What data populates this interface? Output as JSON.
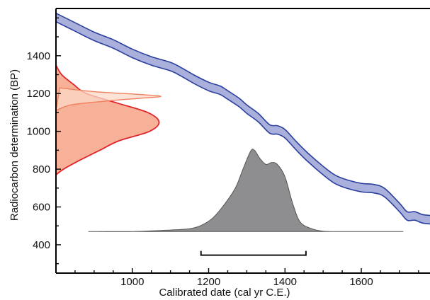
{
  "chart_data": {
    "type": "area",
    "title": "",
    "xlabel": "Calibrated date (cal yr C.E.)",
    "ylabel": "Radiocarbon determination (BP)",
    "xlim": [
      800,
      1780
    ],
    "ylim": [
      250,
      1650
    ],
    "xticks": [
      1000,
      1200,
      1400,
      1600
    ],
    "yticks": [
      400,
      600,
      800,
      1000,
      1200,
      1400
    ],
    "xtick_labels": [
      "1000",
      "1200",
      "1400",
      "1600"
    ],
    "ytick_labels": [
      "400",
      "600",
      "800",
      "1000",
      "1200",
      "1400"
    ],
    "grid": false,
    "legend": false,
    "colors": {
      "calibration_fill": "#aab0dc",
      "calibration_stroke": "#2b3f9e",
      "radiocarbon_fill": "#f6a98e",
      "radiocarbon_stroke": "#e0262b",
      "narrow_fill": "#fbd9c8",
      "narrow_stroke": "#f08060",
      "calibrated_fill": "#8e8e90",
      "calibrated_stroke": "#555555",
      "range_bar": "#111111"
    },
    "series": [
      {
        "type": "band",
        "x": [
          800,
          850,
          900,
          950,
          1000,
          1050,
          1100,
          1130,
          1160,
          1200,
          1230,
          1250,
          1280,
          1300,
          1330,
          1360,
          1380,
          1400,
          1430,
          1460,
          1500,
          1530,
          1560,
          1600,
          1630,
          1660,
          1700,
          1720,
          1740,
          1760,
          1780
        ],
        "y_low": [
          1580,
          1530,
          1480,
          1440,
          1390,
          1350,
          1320,
          1290,
          1255,
          1215,
          1195,
          1170,
          1130,
          1095,
          1050,
          990,
          985,
          965,
          900,
          840,
          770,
          725,
          700,
          680,
          675,
          655,
          575,
          530,
          530,
          515,
          510
        ],
        "y_high": [
          1625,
          1575,
          1525,
          1485,
          1435,
          1395,
          1365,
          1335,
          1300,
          1260,
          1240,
          1215,
          1175,
          1140,
          1095,
          1035,
          1030,
          1010,
          945,
          885,
          815,
          770,
          745,
          725,
          720,
          700,
          620,
          575,
          575,
          560,
          555
        ]
      },
      {
        "type": "density",
        "y": [
          770,
          800,
          850,
          900,
          950,
          1000,
          1050,
          1100,
          1150,
          1200,
          1250,
          1300,
          1350
        ],
        "x": [
          800,
          820,
          865,
          915,
          965,
          1045,
          1070,
          1040,
          960,
          880,
          845,
          815,
          800
        ]
      },
      {
        "type": "density",
        "y": [
          1110,
          1140,
          1160,
          1175,
          1185,
          1195,
          1210,
          1230
        ],
        "x": [
          800,
          840,
          930,
          1020,
          1075,
          1020,
          900,
          810
        ]
      },
      {
        "type": "density",
        "x": [
          885,
          1000,
          1100,
          1150,
          1180,
          1210,
          1240,
          1270,
          1290,
          1310,
          1320,
          1335,
          1350,
          1365,
          1380,
          1400,
          1420,
          1440,
          1470,
          1500,
          1550,
          1710
        ],
        "y": [
          470,
          470,
          478,
          485,
          502,
          540,
          610,
          700,
          800,
          895,
          900,
          855,
          825,
          835,
          825,
          760,
          620,
          520,
          485,
          472,
          470,
          470
        ]
      }
    ],
    "range_bar": {
      "x_start": 1180,
      "x_end": 1455,
      "y": 345
    }
  }
}
